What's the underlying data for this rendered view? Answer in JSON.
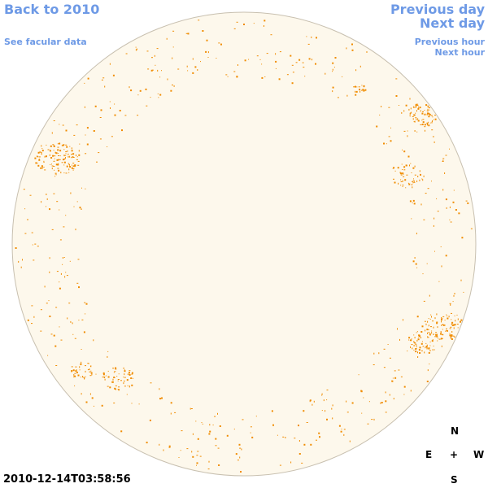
{
  "nav": {
    "back": "Back to 2010",
    "facular": "See facular data",
    "prev_day": "Previous day",
    "next_day": "Next day",
    "prev_hour": "Previous hour",
    "next_hour": "Next hour"
  },
  "timestamp": "2010-12-14T03:58:56",
  "compass": {
    "north": "N",
    "south": "S",
    "east": "E",
    "west": "W",
    "center": "+"
  },
  "colors": {
    "link": "#6e9ae6",
    "disk_fill": "#fdf8ec",
    "disk_border": "#c8c0b0",
    "facula": "#f08c00"
  }
}
